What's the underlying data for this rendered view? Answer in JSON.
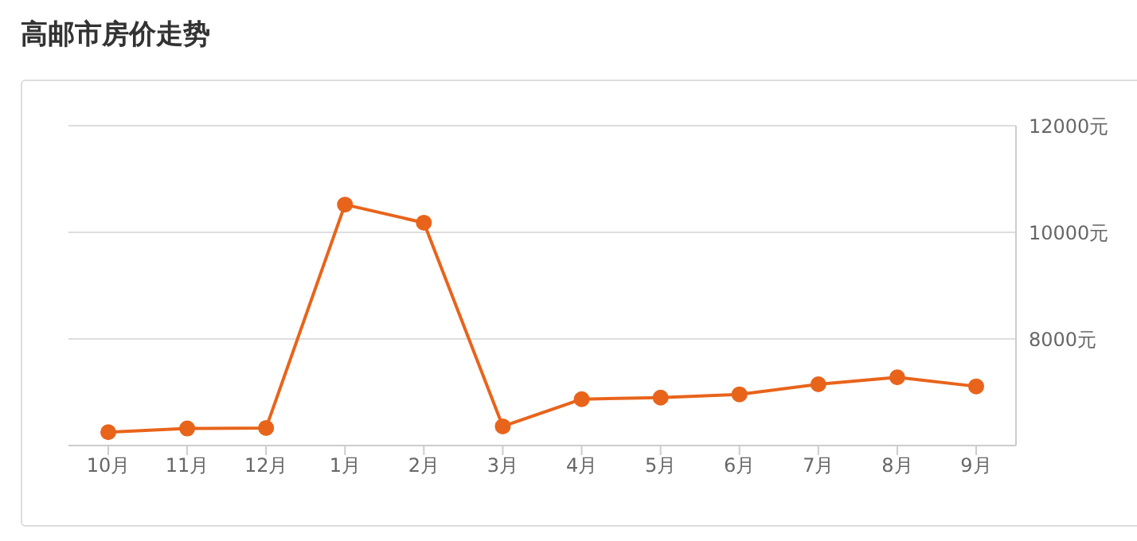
{
  "chart_data": {
    "type": "line",
    "title": "高邮市房价走势",
    "categories": [
      "10月",
      "11月",
      "12月",
      "1月",
      "2月",
      "3月",
      "4月",
      "5月",
      "6月",
      "7月",
      "8月",
      "9月"
    ],
    "series": [
      {
        "color": "#e8641b",
        "values": [
          6250,
          6320,
          6330,
          10520,
          10180,
          6360,
          6870,
          6900,
          6960,
          7150,
          7280,
          7110
        ]
      }
    ],
    "ylim": [
      6000,
      12000
    ],
    "yticks": [
      {
        "value": 6000,
        "label": null
      },
      {
        "value": 8000,
        "label": "8000元"
      },
      {
        "value": 10000,
        "label": "10000元"
      },
      {
        "value": 12000,
        "label": "12000元"
      }
    ],
    "grid": "y",
    "marker": "circle",
    "line_style": "solid",
    "legend": false
  }
}
